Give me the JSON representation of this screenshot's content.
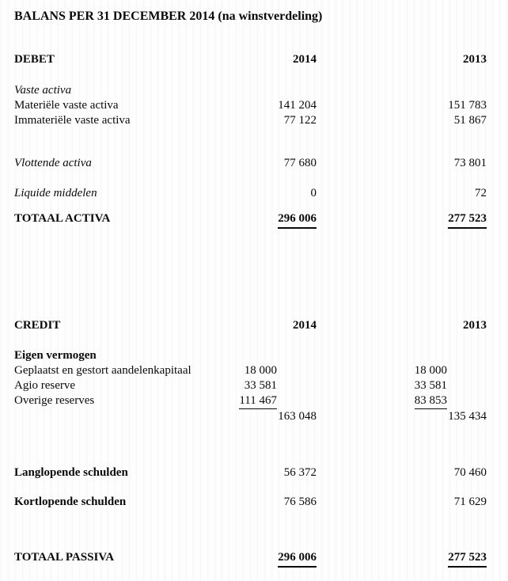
{
  "title": "BALANS PER 31 DECEMBER 2014 (na winstverdeling)",
  "sections": {
    "debet": {
      "heading": "DEBET",
      "col_2014": "2014",
      "col_2013": "2013",
      "rows": [
        {
          "label": "Vaste activa",
          "v2014": "",
          "v2013": ""
        },
        {
          "label": "Materiële vaste activa",
          "v2014": "141 204",
          "v2013": "151 783"
        },
        {
          "label": "Immateriële vaste activa",
          "v2014": "77 122",
          "v2013": "51 867"
        },
        {
          "label": "Vlottende activa",
          "v2014": "77 680",
          "v2013": "73 801"
        },
        {
          "label": "Liquide middelen",
          "v2014": "0",
          "v2013": "72"
        },
        {
          "label": "TOTAAL ACTIVA",
          "v2014": "296 006",
          "v2013": "277 523"
        }
      ]
    },
    "credit": {
      "heading": "CREDIT",
      "col_2014": "2014",
      "col_2013": "2013",
      "rows": [
        {
          "label": "Eigen vermogen",
          "v2014": "",
          "v2013": ""
        },
        {
          "label": "Geplaatst en gestort aandelenkapitaal",
          "v2014": "18 000",
          "v2013": "18 000"
        },
        {
          "label": "Agio reserve",
          "v2014": "33 581",
          "v2013": "33 581"
        },
        {
          "label": "Overige reserves",
          "v2014": "111 467",
          "v2013": "83 853"
        },
        {
          "label": "",
          "v2014": "163 048",
          "v2013": "135 434"
        },
        {
          "label": "Langlopende schulden",
          "v2014": "56 372",
          "v2013": "70 460"
        },
        {
          "label": "Kortlopende schulden",
          "v2014": "76 586",
          "v2013": "71 629"
        },
        {
          "label": "TOTAAL PASSIVA",
          "v2014": "296 006",
          "v2013": "277 523"
        }
      ]
    }
  }
}
